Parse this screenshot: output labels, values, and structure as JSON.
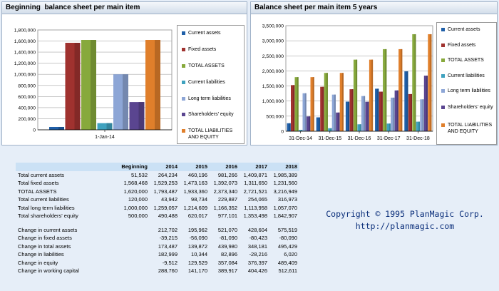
{
  "left_panel": {
    "title": "Beginning  balance sheet per main item"
  },
  "right_panel": {
    "title": "Balance sheet per main item 5 years"
  },
  "legend": [
    {
      "label": "Current assets",
      "color": "#1f5fa8"
    },
    {
      "label": "Fixed assets",
      "color": "#a0322f"
    },
    {
      "label": "TOTAL ASSETS",
      "color": "#87a93c"
    },
    {
      "label": "Current liabilities",
      "color": "#3fa2bf"
    },
    {
      "label": "Long term liabilities",
      "color": "#8da6d6"
    },
    {
      "label": "Shareholders' equity",
      "color": "#5a4590"
    },
    {
      "label": "TOTAL LIABILITIES AND EQUITY",
      "color": "#e07f2b"
    }
  ],
  "chart_data": [
    {
      "type": "bar",
      "title": "Beginning  balance sheet per main item",
      "categories": [
        "1-Jan-14"
      ],
      "ylim": [
        0,
        1800000
      ],
      "yticks": [
        "0",
        "200,000",
        "400,000",
        "600,000",
        "800,000",
        "1,000,000",
        "1,200,000",
        "1,400,000",
        "1,600,000",
        "1,800,000"
      ],
      "grid": true,
      "legend_position": "right",
      "series": [
        {
          "name": "Current assets",
          "values": [
            51532
          ]
        },
        {
          "name": "Fixed assets",
          "values": [
            1568468
          ]
        },
        {
          "name": "TOTAL ASSETS",
          "values": [
            1620000
          ]
        },
        {
          "name": "Current liabilities",
          "values": [
            120000
          ]
        },
        {
          "name": "Long term liabilities",
          "values": [
            1000000
          ]
        },
        {
          "name": "Shareholders' equity",
          "values": [
            500000
          ]
        },
        {
          "name": "TOTAL LIABILITIES AND EQUITY",
          "values": [
            1620000
          ]
        }
      ]
    },
    {
      "type": "bar",
      "title": "Balance sheet per main item 5 years",
      "categories": [
        "31-Dec-14",
        "31-Dec-15",
        "31-Dec-16",
        "31-Dec-17",
        "31-Dec-18"
      ],
      "ylim": [
        0,
        3500000
      ],
      "yticks": [
        "0",
        "500,000",
        "1,000,000",
        "1,500,000",
        "2,000,000",
        "2,500,000",
        "3,000,000",
        "3,500,000"
      ],
      "grid": true,
      "legend_position": "right",
      "series": [
        {
          "name": "Current assets",
          "values": [
            264234,
            460196,
            981266,
            1409871,
            1985389
          ]
        },
        {
          "name": "Fixed assets",
          "values": [
            1529253,
            1473163,
            1392073,
            1311650,
            1231560
          ]
        },
        {
          "name": "TOTAL ASSETS",
          "values": [
            1793487,
            1933360,
            2373340,
            2721521,
            3216949
          ]
        },
        {
          "name": "Current liabilities",
          "values": [
            43942,
            98734,
            229887,
            254065,
            316973
          ]
        },
        {
          "name": "Long term liabilities",
          "values": [
            1259057,
            1214609,
            1166352,
            1113958,
            1057070
          ]
        },
        {
          "name": "Shareholders' equity",
          "values": [
            490488,
            620017,
            977101,
            1353498,
            1842907
          ]
        },
        {
          "name": "TOTAL LIABILITIES AND EQUITY",
          "values": [
            1793487,
            1933360,
            2373340,
            2721521,
            3216949
          ]
        }
      ]
    }
  ],
  "table": {
    "headers": [
      "",
      "Beginning",
      "2014",
      "2015",
      "2016",
      "2017",
      "2018"
    ],
    "rows": [
      [
        "Total current assets",
        "51,532",
        "264,234",
        "460,196",
        "981,266",
        "1,409,871",
        "1,985,389"
      ],
      [
        "Total fixed assets",
        "1,568,468",
        "1,529,253",
        "1,473,163",
        "1,392,073",
        "1,311,650",
        "1,231,560"
      ],
      [
        "TOTAL ASSETS",
        "1,620,000",
        "1,793,487",
        "1,933,360",
        "2,373,340",
        "2,721,521",
        "3,216,949"
      ],
      [
        "Total current liabilities",
        "120,000",
        "43,942",
        "98,734",
        "229,887",
        "254,065",
        "316,973"
      ],
      [
        "Total long term liabilities",
        "1,000,000",
        "1,259,057",
        "1,214,609",
        "1,166,352",
        "1,113,958",
        "1,057,070"
      ],
      [
        "Total shareholders' equity",
        "500,000",
        "490,488",
        "620,017",
        "977,101",
        "1,353,498",
        "1,842,907"
      ]
    ],
    "change_rows": [
      [
        "Change in current assets",
        "",
        "212,702",
        "195,962",
        "521,070",
        "428,604",
        "575,519"
      ],
      [
        "Change in fixed assets",
        "",
        "-39,215",
        "-56,090",
        "-81,090",
        "-80,423",
        "-80,090"
      ],
      [
        "Change in total assets",
        "",
        "173,487",
        "139,872",
        "439,980",
        "348,181",
        "495,429"
      ],
      [
        "Change in liabilities",
        "",
        "182,999",
        "10,344",
        "82,896",
        "-28,216",
        "6,020"
      ],
      [
        "Change in equity",
        "",
        "-9,512",
        "129,529",
        "357,084",
        "376,397",
        "489,409"
      ],
      [
        "Change in working capital",
        "",
        "288,760",
        "141,170",
        "389,917",
        "404,426",
        "512,611"
      ]
    ]
  },
  "copyright": {
    "line1": "Copyright © 1995 PlanMagic Corp.",
    "line2": "http://planmagic.com"
  }
}
